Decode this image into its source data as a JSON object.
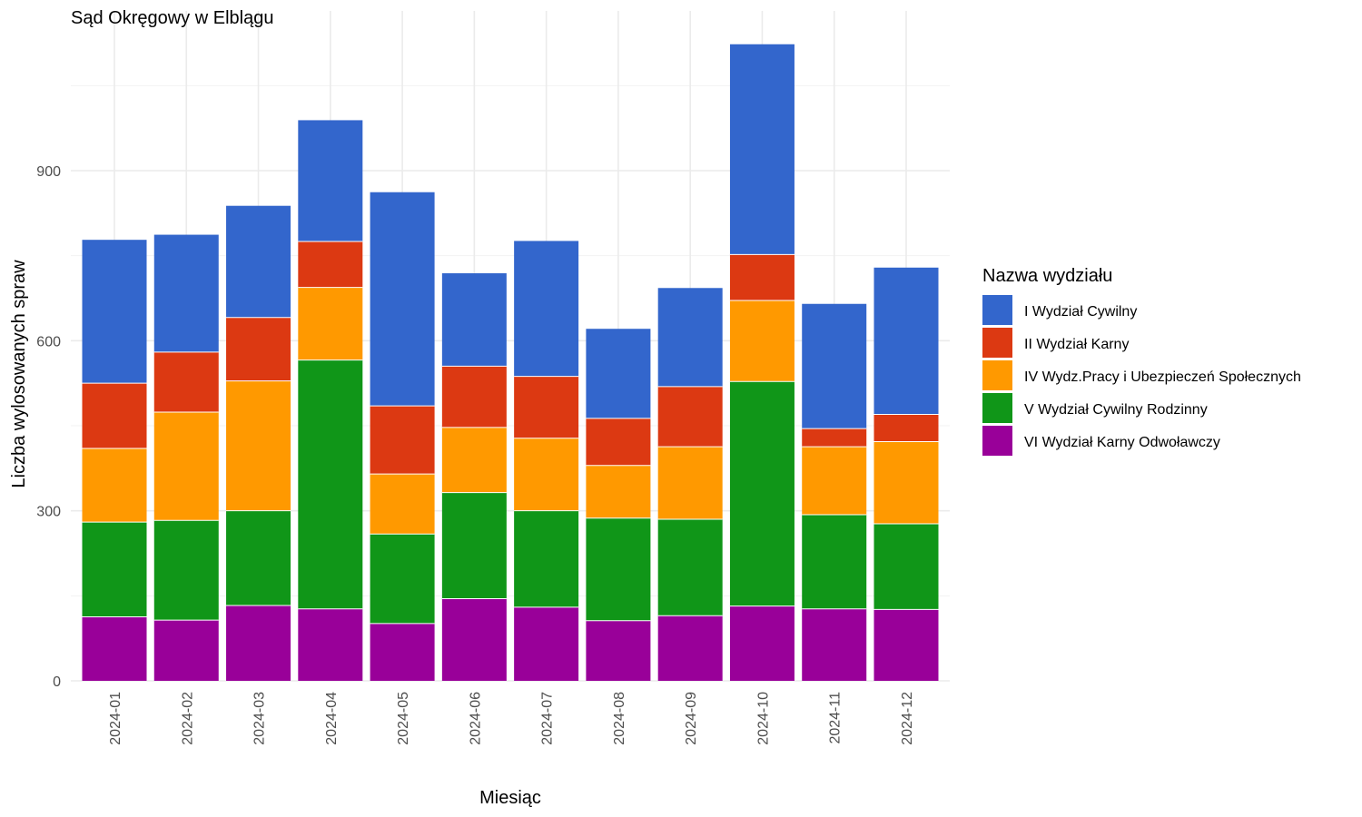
{
  "chart_data": {
    "type": "bar",
    "stacked": true,
    "title": "Sąd Okręgowy w Elblągu",
    "xlabel": "Miesiąc",
    "ylabel": "Liczba wylosowanych spraw",
    "ylim": [
      0,
      1130
    ],
    "yticks": [
      0,
      300,
      600,
      900
    ],
    "grid": true,
    "legend_position": "right",
    "legend_title": "Nazwa wydziału",
    "categories": [
      "2024-01",
      "2024-02",
      "2024-03",
      "2024-04",
      "2024-05",
      "2024-06",
      "2024-07",
      "2024-08",
      "2024-09",
      "2024-10",
      "2024-11",
      "2024-12"
    ],
    "series": [
      {
        "name": "VI Wydział Karny Odwoławczy",
        "color": "#990099",
        "values": [
          113,
          107,
          133,
          127,
          101,
          145,
          130,
          106,
          115,
          132,
          127,
          126
        ]
      },
      {
        "name": "V Wydział Cywilny Rodzinny",
        "color": "#109618",
        "values": [
          167,
          176,
          167,
          439,
          158,
          187,
          170,
          181,
          170,
          396,
          166,
          151
        ]
      },
      {
        "name": "IV Wydz.Pracy i Ubezpieczeń Społecznych",
        "color": "#ff9900",
        "values": [
          130,
          191,
          229,
          128,
          106,
          115,
          128,
          93,
          128,
          143,
          120,
          145
        ]
      },
      {
        "name": "II Wydział Karny",
        "color": "#dc3912",
        "values": [
          115,
          106,
          112,
          81,
          120,
          108,
          109,
          83,
          106,
          81,
          32,
          48
        ]
      },
      {
        "name": "I Wydział Cywilny",
        "color": "#3366cc",
        "values": [
          253,
          207,
          197,
          214,
          377,
          164,
          239,
          158,
          174,
          371,
          220,
          259
        ]
      }
    ]
  }
}
